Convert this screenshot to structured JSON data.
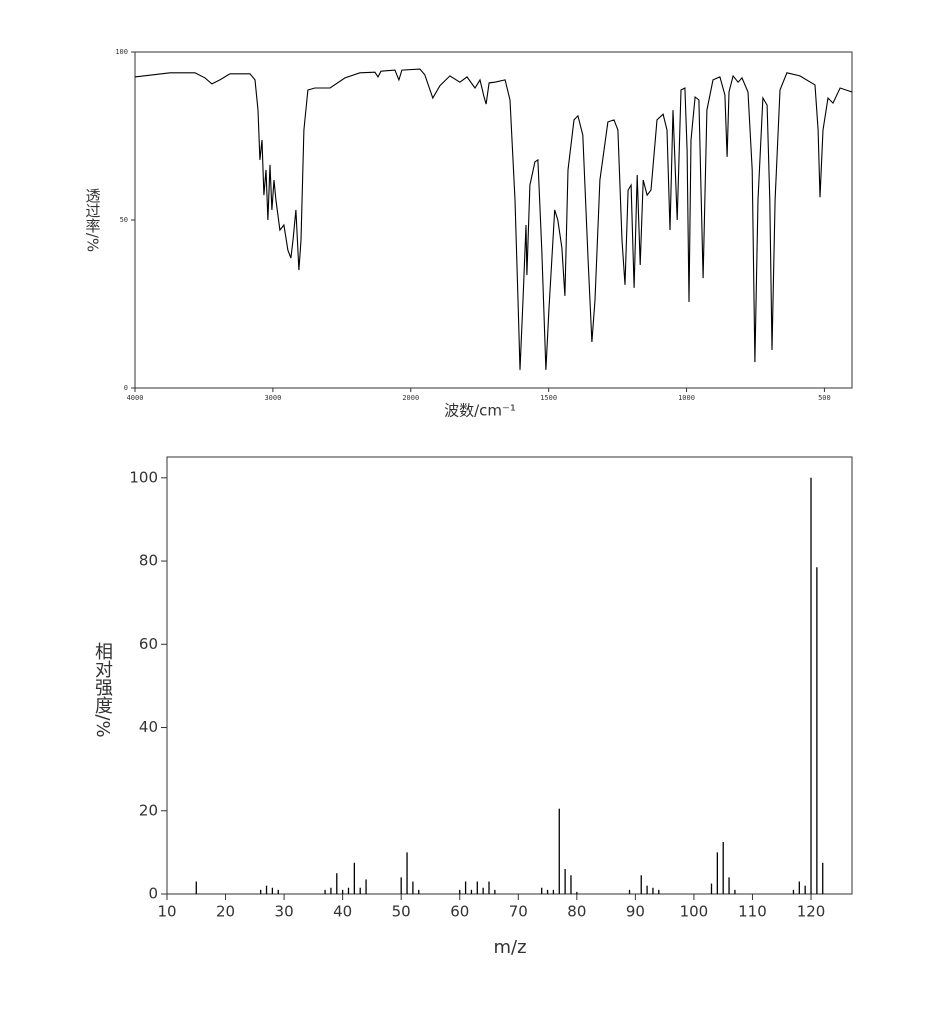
{
  "chart_data": [
    {
      "type": "line",
      "color": "#000000",
      "x_label": "波数/cm⁻¹",
      "y_label": "透过率/%",
      "xscale": "piecewise",
      "xlim": [
        4000,
        400
      ],
      "xticks": [
        4000,
        3000,
        2000,
        1500,
        1000,
        500
      ],
      "ylim": [
        0,
        100
      ],
      "yticks": [
        0,
        50,
        100
      ],
      "x": [
        4000,
        3746,
        3565,
        3492,
        3442,
        3384,
        3311,
        3166,
        3130,
        3108,
        3094,
        3079,
        3065,
        3050,
        3036,
        3021,
        3007,
        2992,
        2978,
        2949,
        2920,
        2891,
        2869,
        2854,
        2833,
        2811,
        2796,
        2775,
        2746,
        2695,
        2586,
        2477,
        2369,
        2260,
        2238,
        2216,
        2115,
        2086,
        2064,
        1967,
        1949,
        1920,
        1894,
        1858,
        1822,
        1796,
        1767,
        1749,
        1735,
        1727,
        1716,
        1695,
        1658,
        1640,
        1622,
        1611,
        1604,
        1593,
        1582,
        1579,
        1568,
        1550,
        1539,
        1525,
        1510,
        1499,
        1478,
        1467,
        1452,
        1441,
        1430,
        1408,
        1394,
        1376,
        1357,
        1343,
        1332,
        1314,
        1285,
        1263,
        1249,
        1234,
        1223,
        1212,
        1201,
        1190,
        1179,
        1168,
        1157,
        1143,
        1129,
        1107,
        1085,
        1071,
        1060,
        1049,
        1034,
        1020,
        1006,
        998,
        991,
        984,
        969,
        955,
        940,
        926,
        904,
        879,
        861,
        853,
        846,
        831,
        813,
        799,
        777,
        762,
        752,
        741,
        723,
        708,
        698,
        690,
        679,
        661,
        636,
        589,
        534,
        523,
        516,
        505,
        487,
        469,
        443,
        400
      ],
      "values": [
        92.6,
        93.8,
        93.8,
        92.3,
        90.5,
        91.7,
        93.5,
        93.5,
        91.7,
        82.7,
        67.9,
        73.8,
        57.4,
        64.9,
        50,
        66.4,
        53,
        61.9,
        56,
        47,
        48.5,
        41,
        38.7,
        44,
        53,
        35.1,
        44,
        76.8,
        88.7,
        89.3,
        89.3,
        92.3,
        93.8,
        94,
        92.6,
        94.3,
        94.6,
        91.7,
        94.6,
        94.9,
        93.2,
        86.3,
        90,
        92.9,
        91,
        92.6,
        89.3,
        91.7,
        86.9,
        84.5,
        90.8,
        91,
        91.7,
        85.7,
        56,
        26.2,
        5.4,
        26.2,
        48.5,
        33.6,
        60.4,
        67.3,
        67.9,
        41,
        5.4,
        23.2,
        53,
        50,
        41.7,
        27.4,
        64.9,
        79.8,
        81,
        75.3,
        38.1,
        13.7,
        26.2,
        61.9,
        79.2,
        79.8,
        76.8,
        44,
        30.7,
        58.9,
        60.4,
        29.8,
        63.4,
        36.6,
        61.9,
        57.4,
        58.9,
        79.8,
        81.5,
        76.8,
        47,
        82.7,
        50,
        88.7,
        89.3,
        70.8,
        25.6,
        73.8,
        86.6,
        85.7,
        32.7,
        82.7,
        91.7,
        92.6,
        87.2,
        68.8,
        88.1,
        92.9,
        91,
        92.3,
        88.1,
        64.9,
        7.7,
        56,
        86.3,
        84.2,
        56,
        11.3,
        56,
        88.7,
        93.8,
        92.9,
        90.2,
        76.8,
        56.8,
        76.8,
        86.3,
        84.8,
        89.3,
        88.1
      ]
    },
    {
      "type": "stem",
      "color": "#000000",
      "x_label": "m/z",
      "y_label": "相对强度/%",
      "xlim": [
        10,
        127
      ],
      "xticks": [
        10,
        20,
        30,
        40,
        50,
        60,
        70,
        80,
        90,
        100,
        110,
        120
      ],
      "ylim": [
        0,
        105
      ],
      "yticks": [
        0,
        20,
        40,
        60,
        80,
        100
      ],
      "x": [
        15,
        26,
        27,
        28,
        29,
        37,
        38,
        39,
        40,
        41,
        42,
        43,
        44,
        50,
        51,
        52,
        53,
        60,
        61,
        62,
        63,
        64,
        65,
        66,
        74,
        75,
        76,
        77,
        78,
        79,
        80,
        89,
        91,
        92,
        93,
        94,
        103,
        104,
        105,
        106,
        107,
        117,
        118,
        119,
        120,
        121,
        122
      ],
      "values": [
        3,
        1,
        2,
        1.5,
        1,
        1,
        1.5,
        5,
        1,
        1.5,
        7.5,
        1.5,
        3.5,
        4,
        10,
        3,
        1,
        1,
        3,
        1,
        3,
        1.5,
        3,
        1,
        1.5,
        1,
        1,
        20.5,
        6,
        4.5,
        0.5,
        1,
        4.5,
        2,
        1.5,
        1,
        2.5,
        10,
        12.5,
        4,
        1,
        1,
        3,
        2,
        100,
        78.5,
        7.5
      ]
    }
  ]
}
